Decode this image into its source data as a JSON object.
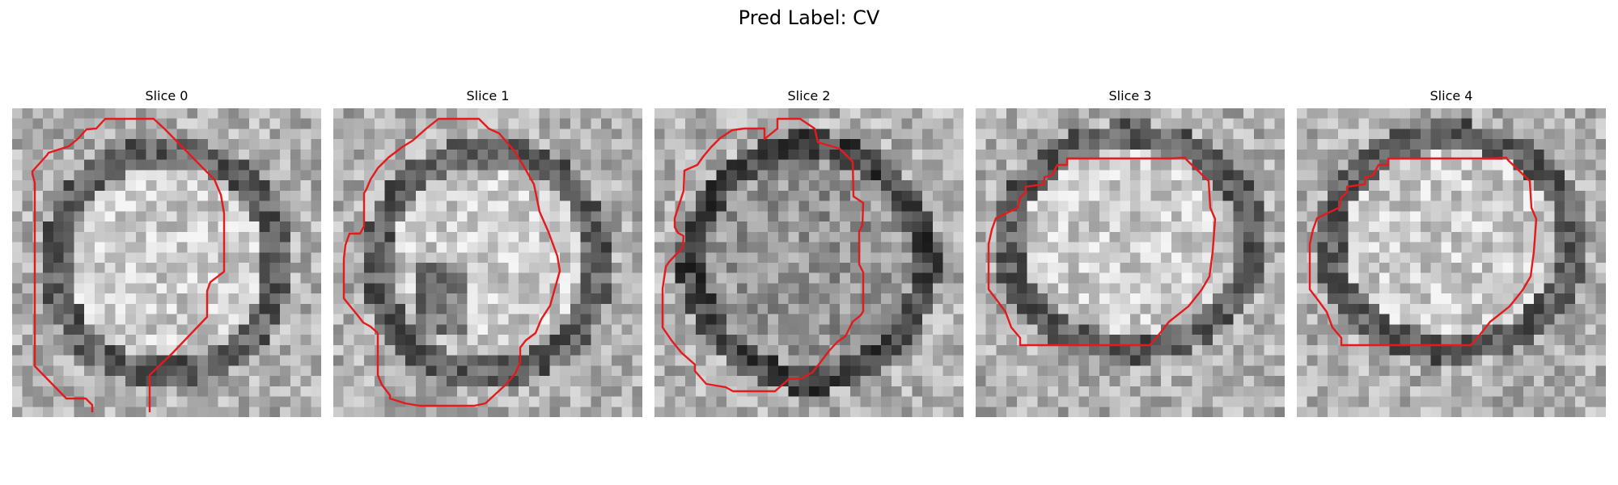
{
  "figure": {
    "title": "Pred Label: CV",
    "contour_color": "#e41a1c",
    "colormap": "gray",
    "panels": [
      {
        "title": "Slice 0",
        "closed": false
      },
      {
        "title": "Slice 1",
        "closed": true
      },
      {
        "title": "Slice 2",
        "closed": true
      },
      {
        "title": "Slice 3",
        "closed": true
      },
      {
        "title": "Slice 4",
        "closed": true
      }
    ]
  }
}
